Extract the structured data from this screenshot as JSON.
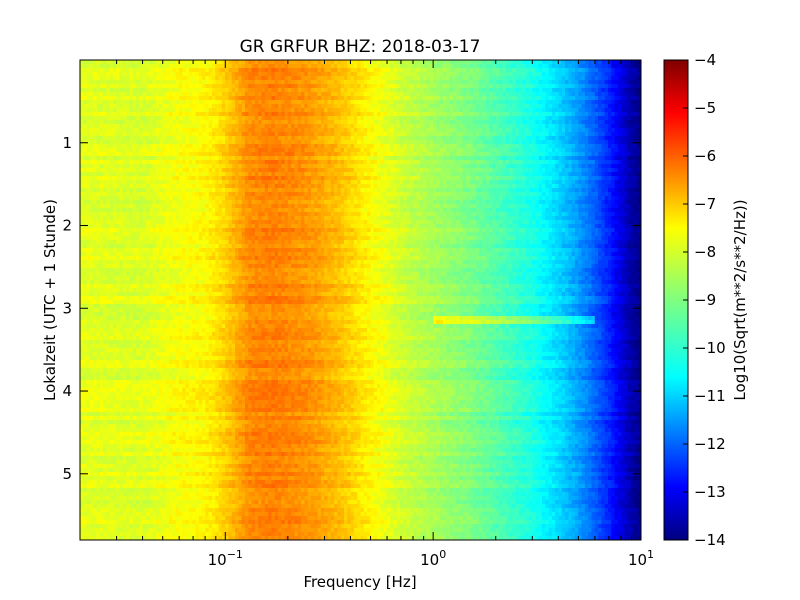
{
  "chart_data": {
    "type": "heatmap",
    "title": "GR GRFUR BHZ: 2018-03-17",
    "xlabel": "Frequency [Hz]",
    "ylabel": "Lokalzeit (UTC + 1 Stunde)",
    "x_scale": "log",
    "xlim": [
      0.02,
      10
    ],
    "x_ticks": [
      {
        "value": 0.1,
        "base": "10",
        "exp": "−1"
      },
      {
        "value": 1,
        "base": "10",
        "exp": "0"
      },
      {
        "value": 10,
        "base": "10",
        "exp": "1"
      }
    ],
    "ylim": [
      0,
      5.8
    ],
    "y_inverted": true,
    "y_ticks": [
      "1",
      "2",
      "3",
      "4",
      "5"
    ],
    "colorbar": {
      "label": "Log10(Sqrt(m**2/s**2/Hz))",
      "range": [
        -14,
        -4
      ],
      "ticks": [
        "−4",
        "−5",
        "−6",
        "−7",
        "−8",
        "−9",
        "−10",
        "−11",
        "−12",
        "−13",
        "−14"
      ],
      "colormap": "jet"
    },
    "z_profile": {
      "frequency": [
        0.02,
        0.04,
        0.06,
        0.08,
        0.1,
        0.13,
        0.17,
        0.25,
        0.35,
        0.5,
        0.7,
        1.0,
        1.5,
        2.0,
        3.0,
        4.0,
        5.0,
        6.0,
        7.0,
        8.0,
        9.0,
        10.0
      ],
      "log10_psd": [
        -8.0,
        -8.1,
        -7.8,
        -7.7,
        -7.3,
        -6.6,
        -6.5,
        -6.7,
        -7.1,
        -7.7,
        -8.2,
        -8.6,
        -9.0,
        -9.4,
        -10.0,
        -10.6,
        -11.2,
        -11.8,
        -12.4,
        -13.0,
        -13.6,
        -13.9
      ]
    },
    "feature": {
      "time": 3.12,
      "freq_range": [
        1,
        6
      ],
      "delta": 1.0
    }
  }
}
